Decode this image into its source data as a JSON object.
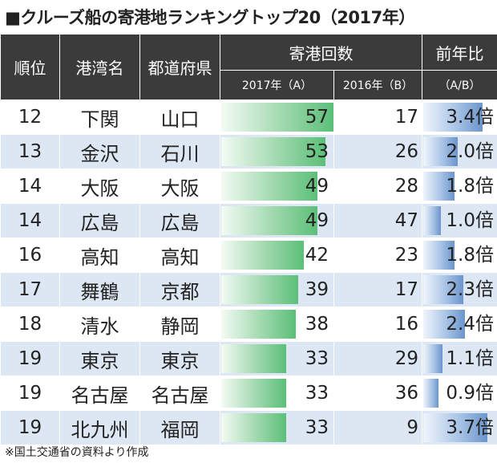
{
  "chart_data": {
    "type": "table",
    "title": "■クルーズ船の寄港地ランキングトップ20（2017年）",
    "headers": {
      "rank": "順位",
      "port": "港湾名",
      "prefecture": "都道府県",
      "calls": "寄港回数",
      "y2017": "2017年（A）",
      "y2016": "2016年（B）",
      "ratio": "前年比",
      "ratio_sub": "（A/B）"
    },
    "rows": [
      {
        "rank": "12",
        "port": "下関",
        "pref": "山口",
        "a": 57,
        "b": 17,
        "ratio": "3.4倍",
        "ratio_value": 3.4
      },
      {
        "rank": "13",
        "port": "金沢",
        "pref": "石川",
        "a": 53,
        "b": 26,
        "ratio": "2.0倍",
        "ratio_value": 2.0
      },
      {
        "rank": "14",
        "port": "大阪",
        "pref": "大阪",
        "a": 49,
        "b": 28,
        "ratio": "1.8倍",
        "ratio_value": 1.8
      },
      {
        "rank": "14",
        "port": "広島",
        "pref": "広島",
        "a": 49,
        "b": 47,
        "ratio": "1.0倍",
        "ratio_value": 1.0
      },
      {
        "rank": "16",
        "port": "高知",
        "pref": "高知",
        "a": 42,
        "b": 23,
        "ratio": "1.8倍",
        "ratio_value": 1.8
      },
      {
        "rank": "17",
        "port": "舞鶴",
        "pref": "京都",
        "a": 39,
        "b": 17,
        "ratio": "2.3倍",
        "ratio_value": 2.3
      },
      {
        "rank": "18",
        "port": "清水",
        "pref": "静岡",
        "a": 38,
        "b": 16,
        "ratio": "2.4倍",
        "ratio_value": 2.4
      },
      {
        "rank": "19",
        "port": "東京",
        "pref": "東京",
        "a": 33,
        "b": 29,
        "ratio": "1.1倍",
        "ratio_value": 1.1
      },
      {
        "rank": "19",
        "port": "名古屋",
        "pref": "名古屋",
        "a": 33,
        "b": 36,
        "ratio": "0.9倍",
        "ratio_value": 0.9
      },
      {
        "rank": "19",
        "port": "北九州",
        "pref": "福岡",
        "a": 33,
        "b": 9,
        "ratio": "3.7倍",
        "ratio_value": 3.7
      }
    ],
    "note": "※国土交通省の資料より作成"
  },
  "colors": {
    "header_bg": "#3b3b3b",
    "row_stripe": "#dde7f3",
    "bar_green": "#5bbf78",
    "bar_blue": "#6b95cc"
  }
}
